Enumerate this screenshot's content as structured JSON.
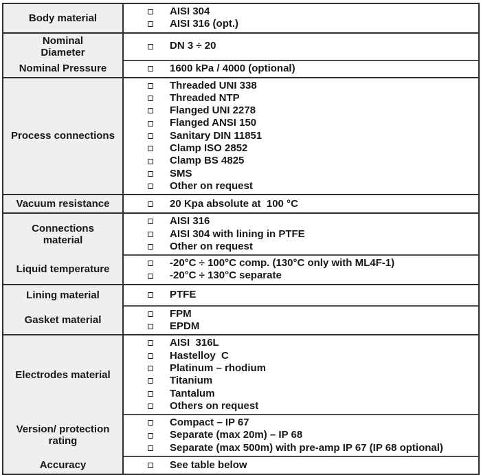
{
  "table": {
    "groups": [
      {
        "rows": [
          {
            "label": "Body material",
            "items": [
              "AISI 304",
              "AISI 316 (opt.)"
            ]
          }
        ]
      },
      {
        "rows": [
          {
            "label": "Nominal\nDiameter",
            "items": [
              "DN 3 ÷ 20"
            ]
          },
          {
            "label": "Nominal Pressure",
            "items": [
              "1600 kPa / 4000 (optional)"
            ]
          }
        ]
      },
      {
        "rows": [
          {
            "label": "Process connections",
            "items": [
              "Threaded UNI 338",
              "Threaded NTP",
              "Flanged UNI 2278",
              "Flanged ANSI 150",
              "Sanitary DIN 11851",
              "Clamp ISO 2852",
              "Clamp BS 4825",
              "SMS",
              "Other on request"
            ]
          }
        ]
      },
      {
        "rows": [
          {
            "label": "Vacuum resistance",
            "items": [
              "20 Kpa absolute at  100 °C"
            ]
          }
        ]
      },
      {
        "rows": [
          {
            "label": "Connections\nmaterial",
            "items": [
              "AISI 316",
              "AISI 304 with lining in PTFE",
              "Other on request"
            ]
          },
          {
            "label": "Liquid temperature",
            "items": [
              "-20°C ÷ 100°C comp. (130°C only with ML4F-1)",
              "-20°C ÷ 130°C separate"
            ]
          }
        ]
      },
      {
        "rows": [
          {
            "label": "Lining material",
            "items": [
              "PTFE"
            ]
          },
          {
            "label": "Gasket material",
            "items": [
              "FPM",
              "EPDM"
            ]
          }
        ]
      },
      {
        "rows": [
          {
            "label": "Electrodes material",
            "items": [
              "AISI  316L",
              "Hastelloy  C",
              "Platinum – rhodium",
              "Titanium",
              "Tantalum",
              "Others on request"
            ]
          },
          {
            "label": "Version/ protection\nrating",
            "items": [
              "Compact – IP 67",
              "Separate (max 20m) – IP 68",
              "Separate (max 500m) with pre-amp IP 67 (IP 68 optional)"
            ]
          },
          {
            "label": "Accuracy",
            "items": [
              "See table below"
            ]
          }
        ]
      }
    ],
    "colors": {
      "label_cell_background": "#eeefee",
      "border_major": "#2e2e2e",
      "border_minor": "#4c4c4c",
      "text": "#17171d"
    }
  }
}
